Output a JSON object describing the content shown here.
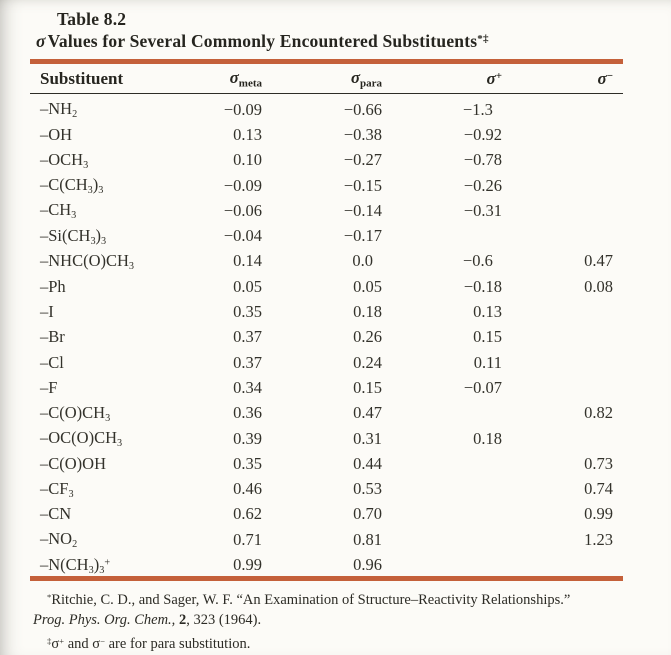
{
  "page": {
    "rule_color": "#c4603a",
    "background": "#fcfbf7",
    "text_color": "#26251f"
  },
  "table": {
    "label": "Table 8.2",
    "title": {
      "sigma": "σ",
      "rest": "Values for Several Commonly Encountered Substituents",
      "marks": "*‡"
    },
    "columns": [
      "Substituent",
      "σ~meta~",
      "σ~para~",
      "σ^+^",
      "σ^−^"
    ],
    "rows": [
      [
        "–NH~2~",
        "−0.09",
        "−0.66",
        "−1.3",
        ""
      ],
      [
        "–OH",
        "0.13",
        "−0.38",
        "−0.92",
        ""
      ],
      [
        "–OCH~3~",
        "0.10",
        "−0.27",
        "−0.78",
        ""
      ],
      [
        "–C(CH~3~)~3~",
        "−0.09",
        "−0.15",
        "−0.26",
        ""
      ],
      [
        "–CH~3~",
        "−0.06",
        "−0.14",
        "−0.31",
        ""
      ],
      [
        "–Si(CH~3~)~3~",
        "−0.04",
        "−0.17",
        "",
        ""
      ],
      [
        "–NHC(O)CH~3~",
        "0.14",
        "0.0",
        "−0.6",
        "0.47"
      ],
      [
        "–Ph",
        "0.05",
        "0.05",
        "−0.18",
        "0.08"
      ],
      [
        "–I",
        "0.35",
        "0.18",
        "0.13",
        ""
      ],
      [
        "–Br",
        "0.37",
        "0.26",
        "0.15",
        ""
      ],
      [
        "–Cl",
        "0.37",
        "0.24",
        "0.11",
        ""
      ],
      [
        "–F",
        "0.34",
        "0.15",
        "−0.07",
        ""
      ],
      [
        "–C(O)CH~3~",
        "0.36",
        "0.47",
        "",
        "0.82"
      ],
      [
        "–OC(O)CH~3~",
        "0.39",
        "0.31",
        "0.18",
        ""
      ],
      [
        "–C(O)OH",
        "0.35",
        "0.44",
        "",
        "0.73"
      ],
      [
        "–CF~3~",
        "0.46",
        "0.53",
        "",
        "0.74"
      ],
      [
        "–CN",
        "0.62",
        "0.70",
        "",
        "0.99"
      ],
      [
        "–NO~2~",
        "0.71",
        "0.81",
        "",
        "1.23"
      ],
      [
        "–N(CH~3~)~3~^+^",
        "0.99",
        "0.96",
        "",
        ""
      ]
    ]
  },
  "footnotes": {
    "f1": {
      "marker": "*",
      "text": "Ritchie, C. D., and Sager, W. F. “An Examination of Structure–Reactivity Relationships.”"
    },
    "f2": {
      "journal": "Prog. Phys. Org. Chem., ",
      "volume": "2",
      "rest": ", 323 (1964)."
    },
    "f3": {
      "marker": "‡",
      "text": "σ^+^ and σ^−^ are for para substitution."
    }
  }
}
